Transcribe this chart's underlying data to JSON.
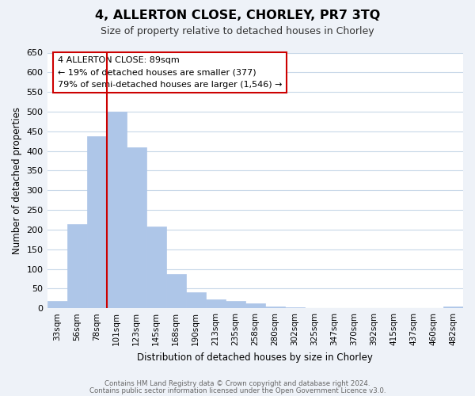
{
  "title": "4, ALLERTON CLOSE, CHORLEY, PR7 3TQ",
  "subtitle": "Size of property relative to detached houses in Chorley",
  "xlabel": "Distribution of detached houses by size in Chorley",
  "ylabel": "Number of detached properties",
  "bar_values": [
    18,
    213,
    438,
    500,
    410,
    207,
    87,
    40,
    22,
    19,
    12,
    5,
    2,
    1,
    1,
    0,
    0,
    0,
    0,
    0,
    4
  ],
  "bar_labels": [
    "33sqm",
    "56sqm",
    "78sqm",
    "101sqm",
    "123sqm",
    "145sqm",
    "168sqm",
    "190sqm",
    "213sqm",
    "235sqm",
    "258sqm",
    "280sqm",
    "302sqm",
    "325sqm",
    "347sqm",
    "370sqm",
    "392sqm",
    "415sqm",
    "437sqm",
    "460sqm",
    "482sqm"
  ],
  "bar_color": "#aec6e8",
  "bar_edge_color": "#aec6e8",
  "property_line_x": 2.5,
  "property_sqm": 89,
  "annotation_text1": "4 ALLERTON CLOSE: 89sqm",
  "annotation_text2": "← 19% of detached houses are smaller (377)",
  "annotation_text3": "79% of semi-detached houses are larger (1,546) →",
  "annotation_box_color": "#ffffff",
  "annotation_box_edge": "#cc0000",
  "property_line_color": "#cc0000",
  "ylim": [
    0,
    650
  ],
  "yticks": [
    0,
    50,
    100,
    150,
    200,
    250,
    300,
    350,
    400,
    450,
    500,
    550,
    600,
    650
  ],
  "footer1": "Contains HM Land Registry data © Crown copyright and database right 2024.",
  "footer2": "Contains public sector information licensed under the Open Government Licence v3.0.",
  "bg_color": "#eef2f8",
  "plot_bg_color": "#ffffff",
  "grid_color": "#c8d8e8"
}
